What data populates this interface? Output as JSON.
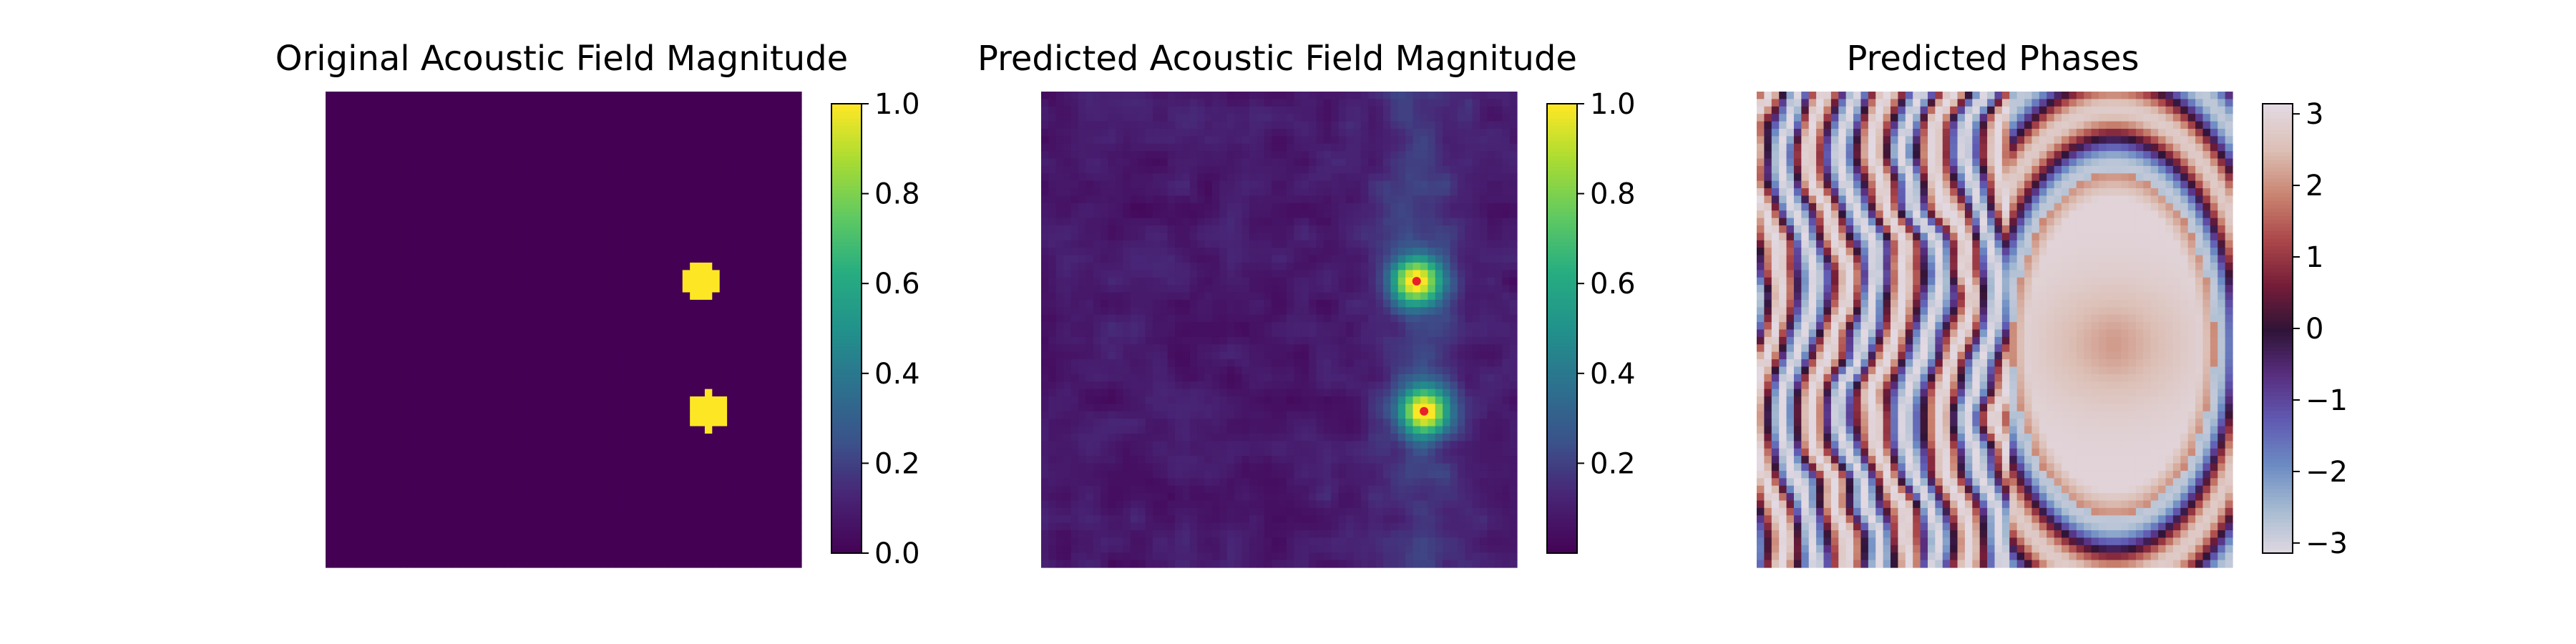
{
  "figure": {
    "panels": [
      {
        "title": "Original Acoustic Field Magnitude"
      },
      {
        "title": "Predicted Acoustic Field Magnitude"
      },
      {
        "title": "Predicted Phases"
      }
    ]
  },
  "chart_data": [
    {
      "type": "heatmap",
      "title": "Original Acoustic Field Magnitude",
      "colormap": "viridis",
      "grid_size": 64,
      "value_range": [
        0.0,
        1.0
      ],
      "colorbar_ticks": [
        "0.0",
        "0.2",
        "0.4",
        "0.6",
        "0.8",
        "1.0"
      ],
      "colorbar_tick_values": [
        0.0,
        0.2,
        0.4,
        0.6,
        0.8,
        1.0
      ],
      "background_value": 0.0,
      "foci": [
        {
          "x": 50.5,
          "y": 25.5,
          "radius": 2.6,
          "value": 1.0
        },
        {
          "x": 51.5,
          "y": 43.0,
          "radius": 2.6,
          "value": 1.0
        }
      ],
      "axes_visible": false
    },
    {
      "type": "heatmap",
      "title": "Predicted Acoustic Field Magnitude",
      "colormap": "viridis",
      "grid_size": 64,
      "value_range": [
        0.0,
        1.0
      ],
      "colorbar_ticks": [
        "0.2",
        "0.4",
        "0.6",
        "0.8",
        "1.0"
      ],
      "colorbar_tick_values": [
        0.2,
        0.4,
        0.6,
        0.8,
        1.0
      ],
      "foci": [
        {
          "x": 50.5,
          "y": 25.5,
          "peak": 0.92,
          "sigma": 2.3
        },
        {
          "x": 51.5,
          "y": 43.0,
          "peak": 0.9,
          "sigma": 2.3
        }
      ],
      "markers": [
        {
          "x": 50.5,
          "y": 25.5,
          "color": "#e8202a"
        },
        {
          "x": 51.5,
          "y": 43.0,
          "color": "#e8202a"
        }
      ],
      "background_level": 0.14,
      "axes_visible": false
    },
    {
      "type": "heatmap",
      "title": "Predicted Phases",
      "colormap": "twilight",
      "grid_size": 64,
      "value_range": [
        -3.14159,
        3.14159
      ],
      "colorbar_ticks": [
        "3",
        "2",
        "1",
        "0",
        "−1",
        "−2",
        "−3"
      ],
      "colorbar_tick_values": [
        3,
        2,
        1,
        0,
        -1,
        -2,
        -3
      ],
      "axes_visible": false
    }
  ]
}
